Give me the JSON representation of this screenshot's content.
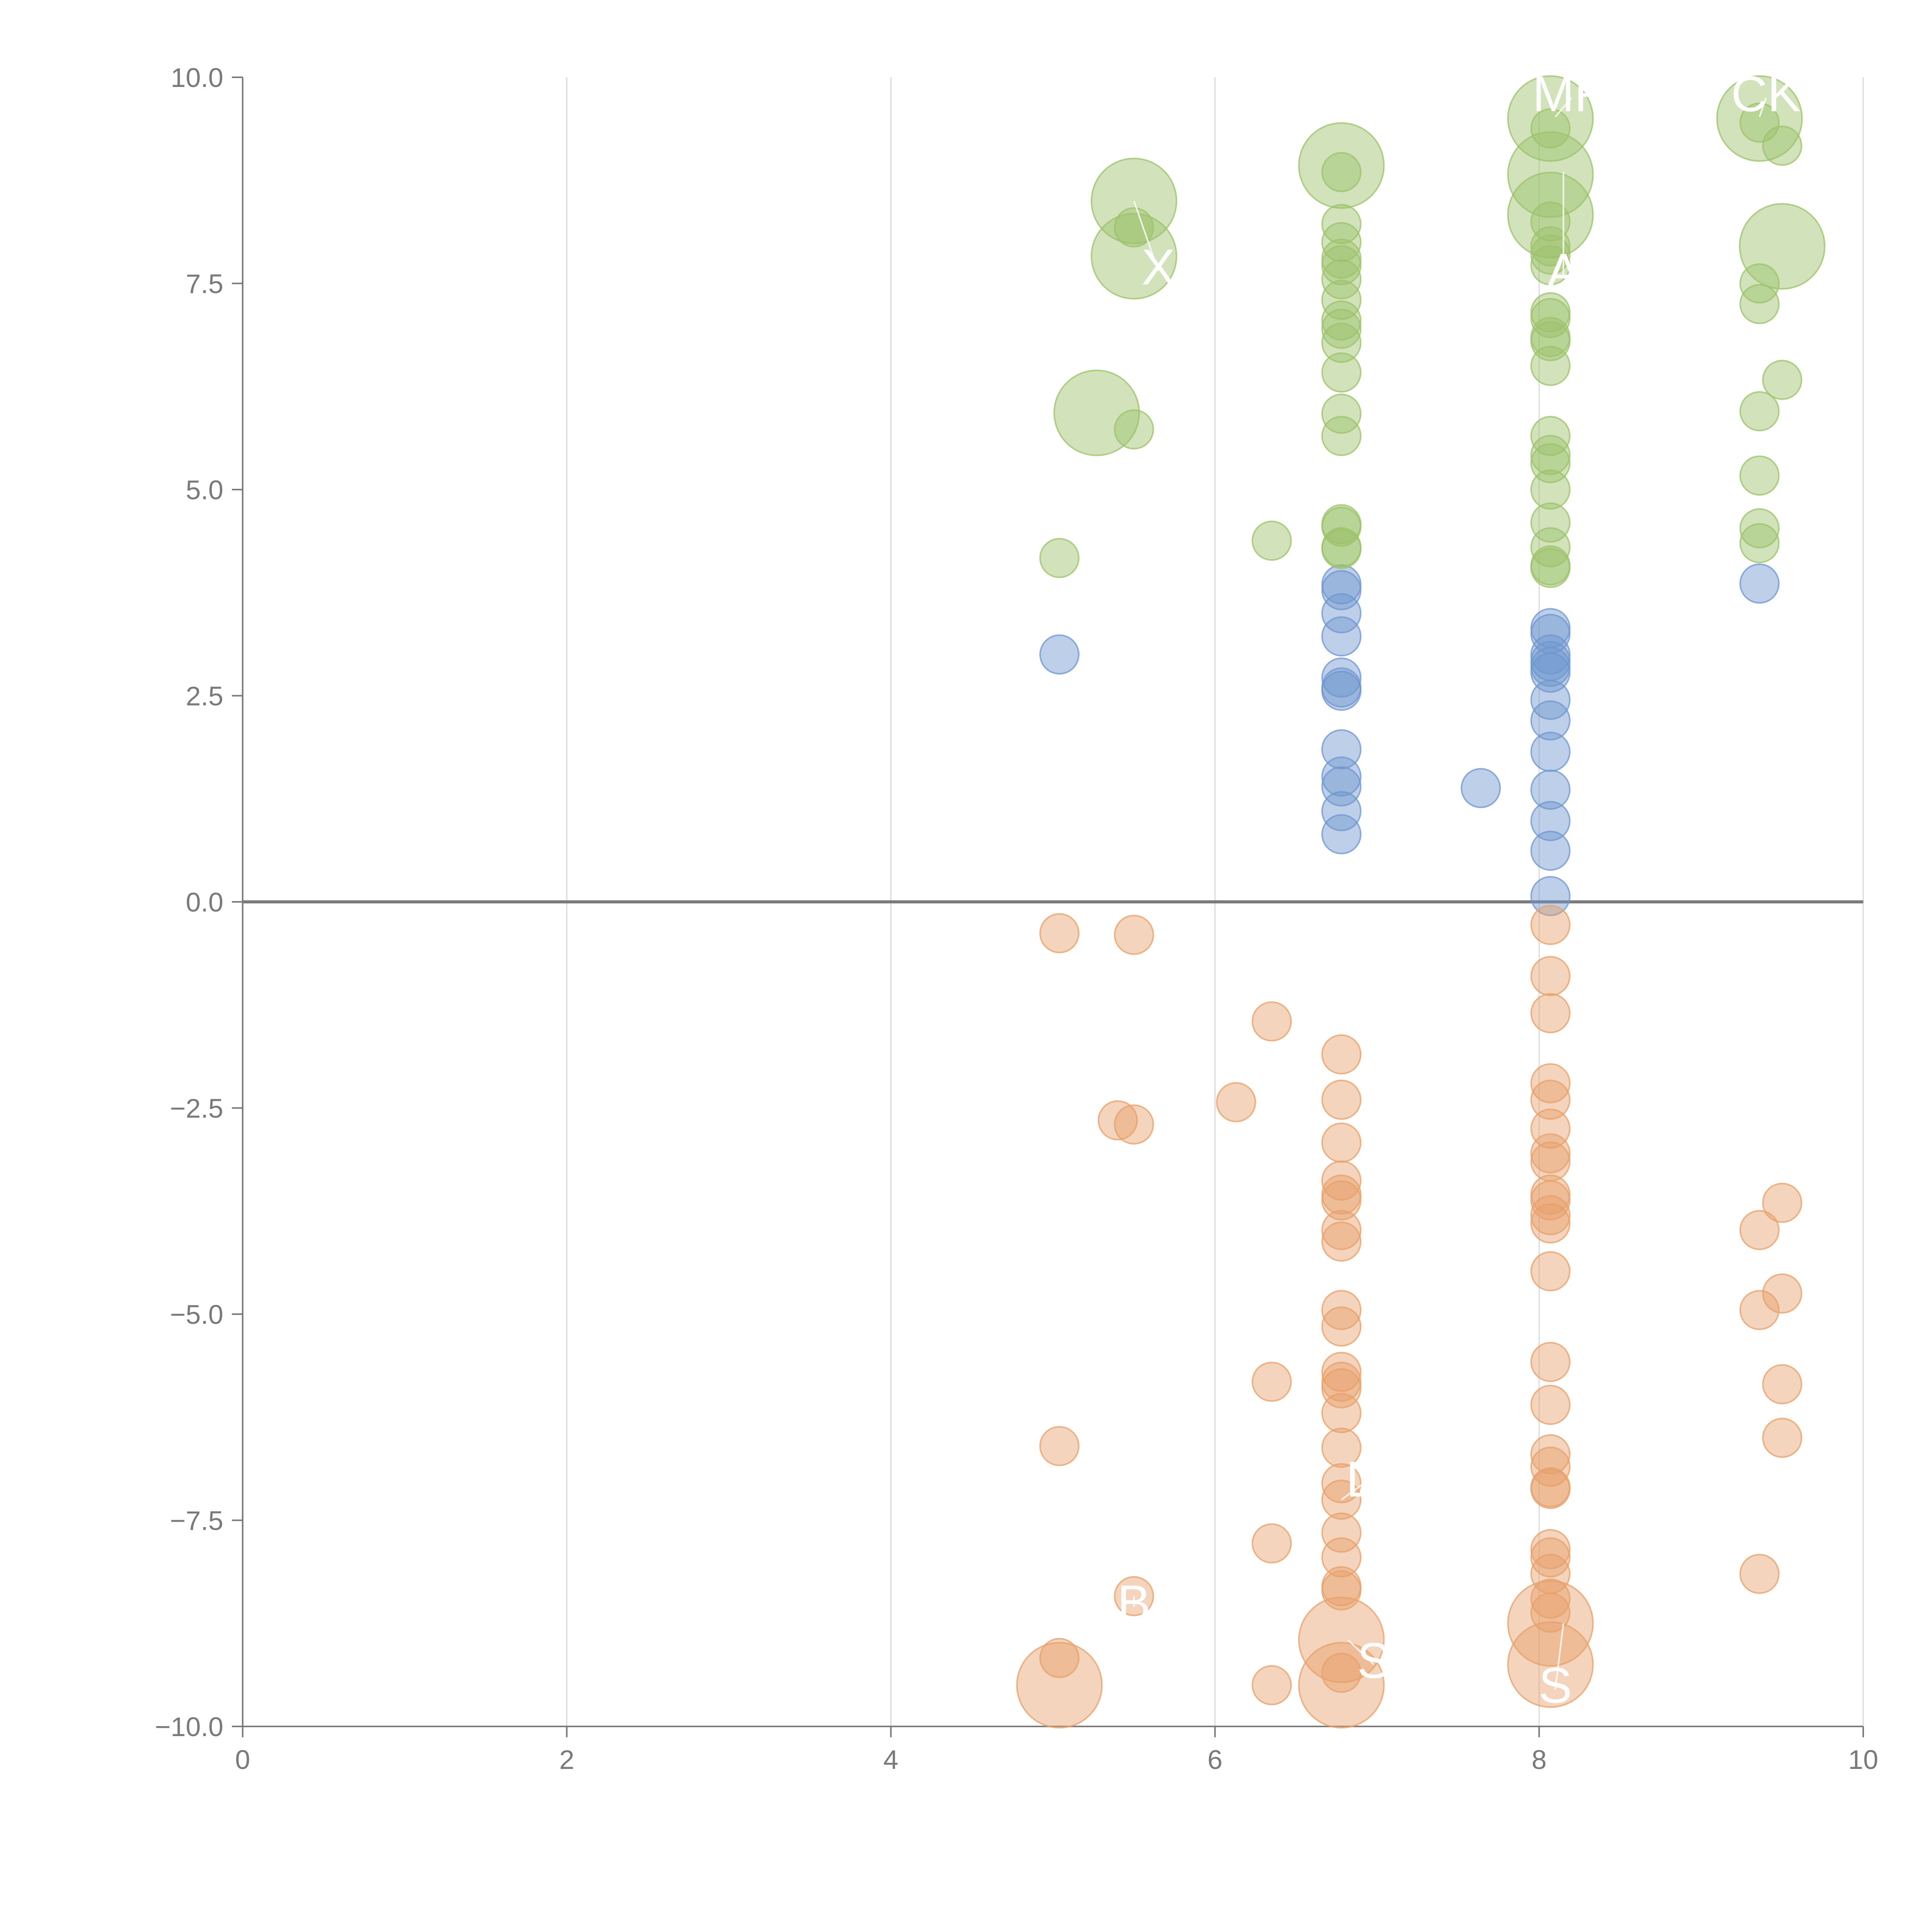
{
  "colors": {
    "positive_low": "#6f96cf",
    "positive_high": "#9cc26a",
    "negative": "#e7a06a",
    "axis": "#7a7a7a",
    "grid": "#d9d9d9",
    "label": "#ffffff"
  },
  "chart_data": {
    "type": "scatter",
    "title": "",
    "xlabel": "",
    "ylabel": "",
    "xlim": [
      0,
      10
    ],
    "ylim": [
      -10,
      10
    ],
    "grid": "vertical",
    "x_ticks": [
      0,
      2,
      4,
      6,
      8,
      10
    ],
    "x_tick_labels": [
      "0",
      "2",
      "4",
      "6",
      "8",
      "10"
    ],
    "y_ticks": [
      -10,
      -7.5,
      -5,
      -2.5,
      0,
      2.5,
      5,
      7.5,
      10
    ],
    "y_tick_labels": [
      "−10.0",
      "−7.5",
      "−5.0",
      "−2.5",
      "0.0",
      "2.5",
      "5.0",
      "7.5",
      "10.0"
    ],
    "zero_line": 0,
    "series": [
      {
        "name": "positive-low",
        "color_key": "positive_low",
        "points": [
          {
            "x": 5.04,
            "y": 3.0,
            "s": 1
          },
          {
            "x": 6.78,
            "y": 3.85,
            "s": 1
          },
          {
            "x": 6.78,
            "y": 3.78,
            "s": 1
          },
          {
            "x": 6.78,
            "y": 3.5,
            "s": 1
          },
          {
            "x": 6.78,
            "y": 3.22,
            "s": 1
          },
          {
            "x": 6.78,
            "y": 2.72,
            "s": 1
          },
          {
            "x": 6.78,
            "y": 2.6,
            "s": 1
          },
          {
            "x": 6.78,
            "y": 2.56,
            "s": 1
          },
          {
            "x": 6.78,
            "y": 1.85,
            "s": 1
          },
          {
            "x": 6.78,
            "y": 1.52,
            "s": 1
          },
          {
            "x": 6.78,
            "y": 1.4,
            "s": 1
          },
          {
            "x": 6.78,
            "y": 1.1,
            "s": 1
          },
          {
            "x": 6.78,
            "y": 0.82,
            "s": 1
          },
          {
            "x": 7.64,
            "y": 1.38,
            "s": 1
          },
          {
            "x": 8.07,
            "y": 3.32,
            "s": 1
          },
          {
            "x": 8.07,
            "y": 3.25,
            "s": 1
          },
          {
            "x": 8.07,
            "y": 3.0,
            "s": 1
          },
          {
            "x": 8.07,
            "y": 2.92,
            "s": 1
          },
          {
            "x": 8.07,
            "y": 2.85,
            "s": 1
          },
          {
            "x": 8.07,
            "y": 2.78,
            "s": 1
          },
          {
            "x": 8.07,
            "y": 2.45,
            "s": 1
          },
          {
            "x": 8.07,
            "y": 2.2,
            "s": 1
          },
          {
            "x": 8.07,
            "y": 1.82,
            "s": 1
          },
          {
            "x": 8.07,
            "y": 1.36,
            "s": 1
          },
          {
            "x": 8.07,
            "y": 0.98,
            "s": 1
          },
          {
            "x": 8.07,
            "y": 0.62,
            "s": 1
          },
          {
            "x": 8.07,
            "y": 0.07,
            "s": 1
          },
          {
            "x": 9.36,
            "y": 3.86,
            "s": 1
          }
        ]
      },
      {
        "name": "positive-high",
        "color_key": "positive_high",
        "points": [
          {
            "x": 5.04,
            "y": 4.17,
            "s": 1
          },
          {
            "x": 5.5,
            "y": 8.5,
            "s": 2.2
          },
          {
            "x": 5.5,
            "y": 8.18,
            "s": 1
          },
          {
            "x": 5.5,
            "y": 7.83,
            "s": 2.2
          },
          {
            "x": 5.27,
            "y": 5.93,
            "s": 2.2
          },
          {
            "x": 5.5,
            "y": 5.73,
            "s": 1
          },
          {
            "x": 6.35,
            "y": 4.38,
            "s": 1
          },
          {
            "x": 6.78,
            "y": 8.93,
            "s": 2.2
          },
          {
            "x": 6.78,
            "y": 8.85,
            "s": 1
          },
          {
            "x": 6.78,
            "y": 8.22,
            "s": 1
          },
          {
            "x": 6.78,
            "y": 8.0,
            "s": 1
          },
          {
            "x": 6.78,
            "y": 7.8,
            "s": 1
          },
          {
            "x": 6.78,
            "y": 7.72,
            "s": 1
          },
          {
            "x": 6.78,
            "y": 7.55,
            "s": 1
          },
          {
            "x": 6.78,
            "y": 7.3,
            "s": 1
          },
          {
            "x": 6.78,
            "y": 7.05,
            "s": 1
          },
          {
            "x": 6.78,
            "y": 6.95,
            "s": 1
          },
          {
            "x": 6.78,
            "y": 6.78,
            "s": 1
          },
          {
            "x": 6.78,
            "y": 6.42,
            "s": 1
          },
          {
            "x": 6.78,
            "y": 5.92,
            "s": 1
          },
          {
            "x": 6.78,
            "y": 5.65,
            "s": 1
          },
          {
            "x": 6.78,
            "y": 4.58,
            "s": 1
          },
          {
            "x": 6.78,
            "y": 4.55,
            "s": 1
          },
          {
            "x": 6.78,
            "y": 4.3,
            "s": 1
          },
          {
            "x": 6.78,
            "y": 4.28,
            "s": 1
          },
          {
            "x": 8.07,
            "y": 9.5,
            "s": 2.2
          },
          {
            "x": 8.07,
            "y": 9.38,
            "s": 1
          },
          {
            "x": 8.07,
            "y": 8.82,
            "s": 2.2
          },
          {
            "x": 8.07,
            "y": 8.33,
            "s": 2.2
          },
          {
            "x": 8.07,
            "y": 8.25,
            "s": 1
          },
          {
            "x": 8.07,
            "y": 7.95,
            "s": 1
          },
          {
            "x": 8.07,
            "y": 7.85,
            "s": 1
          },
          {
            "x": 8.07,
            "y": 7.72,
            "s": 1
          },
          {
            "x": 8.07,
            "y": 7.15,
            "s": 1
          },
          {
            "x": 8.07,
            "y": 7.08,
            "s": 1
          },
          {
            "x": 8.07,
            "y": 6.85,
            "s": 1
          },
          {
            "x": 8.07,
            "y": 6.8,
            "s": 1
          },
          {
            "x": 8.07,
            "y": 6.5,
            "s": 1
          },
          {
            "x": 8.07,
            "y": 5.65,
            "s": 1
          },
          {
            "x": 8.07,
            "y": 5.42,
            "s": 1
          },
          {
            "x": 8.07,
            "y": 5.32,
            "s": 1
          },
          {
            "x": 8.07,
            "y": 5.0,
            "s": 1
          },
          {
            "x": 8.07,
            "y": 4.6,
            "s": 1
          },
          {
            "x": 8.07,
            "y": 4.3,
            "s": 1
          },
          {
            "x": 8.07,
            "y": 4.08,
            "s": 1
          },
          {
            "x": 8.07,
            "y": 4.05,
            "s": 1
          },
          {
            "x": 9.36,
            "y": 9.5,
            "s": 2.2
          },
          {
            "x": 9.36,
            "y": 9.45,
            "s": 1
          },
          {
            "x": 9.5,
            "y": 9.17,
            "s": 1
          },
          {
            "x": 9.5,
            "y": 7.95,
            "s": 2.2
          },
          {
            "x": 9.36,
            "y": 7.5,
            "s": 1
          },
          {
            "x": 9.36,
            "y": 7.25,
            "s": 1
          },
          {
            "x": 9.5,
            "y": 6.33,
            "s": 1
          },
          {
            "x": 9.36,
            "y": 5.95,
            "s": 1
          },
          {
            "x": 9.36,
            "y": 5.17,
            "s": 1
          },
          {
            "x": 9.36,
            "y": 4.53,
            "s": 1
          },
          {
            "x": 9.36,
            "y": 4.35,
            "s": 1
          }
        ]
      },
      {
        "name": "negative",
        "color_key": "negative",
        "points": [
          {
            "x": 5.04,
            "y": -0.38,
            "s": 1
          },
          {
            "x": 5.5,
            "y": -0.4,
            "s": 1
          },
          {
            "x": 5.4,
            "y": -2.65,
            "s": 1
          },
          {
            "x": 5.5,
            "y": -2.7,
            "s": 1
          },
          {
            "x": 5.04,
            "y": -6.6,
            "s": 1
          },
          {
            "x": 5.5,
            "y": -8.42,
            "s": 1
          },
          {
            "x": 5.04,
            "y": -9.17,
            "s": 1
          },
          {
            "x": 5.04,
            "y": -9.5,
            "s": 2.2
          },
          {
            "x": 6.35,
            "y": -1.45,
            "s": 1
          },
          {
            "x": 6.13,
            "y": -2.43,
            "s": 1
          },
          {
            "x": 6.35,
            "y": -5.82,
            "s": 1
          },
          {
            "x": 6.35,
            "y": -7.78,
            "s": 1
          },
          {
            "x": 6.35,
            "y": -9.5,
            "s": 1
          },
          {
            "x": 6.78,
            "y": -1.85,
            "s": 1
          },
          {
            "x": 6.78,
            "y": -2.4,
            "s": 1
          },
          {
            "x": 6.78,
            "y": -2.92,
            "s": 1
          },
          {
            "x": 6.78,
            "y": -3.38,
            "s": 1
          },
          {
            "x": 6.78,
            "y": -3.55,
            "s": 1
          },
          {
            "x": 6.78,
            "y": -3.62,
            "s": 1
          },
          {
            "x": 6.78,
            "y": -3.98,
            "s": 1
          },
          {
            "x": 6.78,
            "y": -4.12,
            "s": 1
          },
          {
            "x": 6.78,
            "y": -4.95,
            "s": 1
          },
          {
            "x": 6.78,
            "y": -5.15,
            "s": 1
          },
          {
            "x": 6.78,
            "y": -5.7,
            "s": 1
          },
          {
            "x": 6.78,
            "y": -5.82,
            "s": 1
          },
          {
            "x": 6.78,
            "y": -5.9,
            "s": 1
          },
          {
            "x": 6.78,
            "y": -6.2,
            "s": 1
          },
          {
            "x": 6.78,
            "y": -6.62,
            "s": 1
          },
          {
            "x": 6.78,
            "y": -7.05,
            "s": 1
          },
          {
            "x": 6.78,
            "y": -7.25,
            "s": 1
          },
          {
            "x": 6.78,
            "y": -7.65,
            "s": 1
          },
          {
            "x": 6.78,
            "y": -7.95,
            "s": 1
          },
          {
            "x": 6.78,
            "y": -8.3,
            "s": 1
          },
          {
            "x": 6.78,
            "y": -8.35,
            "s": 1
          },
          {
            "x": 6.78,
            "y": -8.95,
            "s": 2.2
          },
          {
            "x": 6.78,
            "y": -9.35,
            "s": 1
          },
          {
            "x": 6.78,
            "y": -9.5,
            "s": 2.2
          },
          {
            "x": 8.07,
            "y": -0.28,
            "s": 1
          },
          {
            "x": 8.07,
            "y": -0.9,
            "s": 1
          },
          {
            "x": 8.07,
            "y": -1.35,
            "s": 1
          },
          {
            "x": 8.07,
            "y": -2.2,
            "s": 1
          },
          {
            "x": 8.07,
            "y": -2.4,
            "s": 1
          },
          {
            "x": 8.07,
            "y": -2.75,
            "s": 1
          },
          {
            "x": 8.07,
            "y": -3.05,
            "s": 1
          },
          {
            "x": 8.07,
            "y": -3.15,
            "s": 1
          },
          {
            "x": 8.07,
            "y": -3.55,
            "s": 1
          },
          {
            "x": 8.07,
            "y": -3.62,
            "s": 1
          },
          {
            "x": 8.07,
            "y": -3.8,
            "s": 1
          },
          {
            "x": 8.07,
            "y": -3.9,
            "s": 1
          },
          {
            "x": 8.07,
            "y": -4.48,
            "s": 1
          },
          {
            "x": 8.07,
            "y": -5.58,
            "s": 1
          },
          {
            "x": 8.07,
            "y": -6.1,
            "s": 1
          },
          {
            "x": 8.07,
            "y": -6.7,
            "s": 1
          },
          {
            "x": 8.07,
            "y": -6.85,
            "s": 1
          },
          {
            "x": 8.07,
            "y": -7.1,
            "s": 1
          },
          {
            "x": 8.07,
            "y": -7.12,
            "s": 1
          },
          {
            "x": 8.07,
            "y": -7.85,
            "s": 1
          },
          {
            "x": 8.07,
            "y": -7.95,
            "s": 1
          },
          {
            "x": 8.07,
            "y": -8.15,
            "s": 1
          },
          {
            "x": 8.07,
            "y": -8.45,
            "s": 1
          },
          {
            "x": 8.07,
            "y": -8.62,
            "s": 1
          },
          {
            "x": 8.07,
            "y": -8.75,
            "s": 2.2
          },
          {
            "x": 8.07,
            "y": -9.25,
            "s": 2.2
          },
          {
            "x": 9.5,
            "y": -3.65,
            "s": 1
          },
          {
            "x": 9.36,
            "y": -3.98,
            "s": 1
          },
          {
            "x": 9.5,
            "y": -4.75,
            "s": 1
          },
          {
            "x": 9.36,
            "y": -4.95,
            "s": 1
          },
          {
            "x": 9.5,
            "y": -5.85,
            "s": 1
          },
          {
            "x": 9.5,
            "y": -6.5,
            "s": 1
          },
          {
            "x": 9.36,
            "y": -8.15,
            "s": 1
          }
        ]
      }
    ],
    "annotations": [
      {
        "text": "MR",
        "x": 8.2,
        "y": 9.75,
        "px": 8.1,
        "py": 9.52
      },
      {
        "text": "CK",
        "x": 9.4,
        "y": 9.75,
        "px": 9.36,
        "py": 9.52
      },
      {
        "text": "X",
        "x": 5.65,
        "y": 7.65,
        "px": 5.5,
        "py": 8.5
      },
      {
        "text": "A",
        "x": 8.15,
        "y": 7.6,
        "px": 8.15,
        "py": 8.85
      },
      {
        "text": "D",
        "x": 6.92,
        "y": -7.05,
        "px": 6.78,
        "py": -7.25
      },
      {
        "text": "B",
        "x": 5.5,
        "y": -8.55,
        "px": 5.5,
        "py": -8.42
      },
      {
        "text": "S",
        "x": 6.98,
        "y": -9.25,
        "px": 6.82,
        "py": -8.95
      },
      {
        "text": "S",
        "x": 8.1,
        "y": -9.55,
        "px": 8.15,
        "py": -8.75
      }
    ]
  }
}
